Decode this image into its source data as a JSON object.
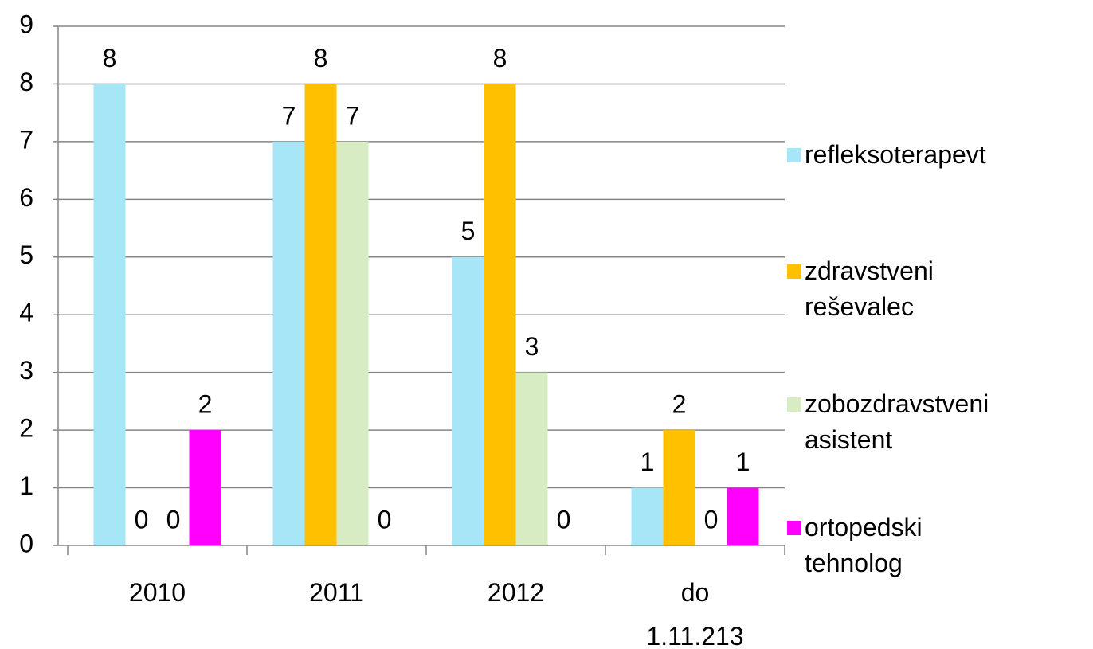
{
  "chart_data": {
    "type": "bar",
    "categories": [
      "2010",
      "2011",
      "2012",
      "do 1.11.213"
    ],
    "series": [
      {
        "name": "refleksoterapevt",
        "color": "#a6e6f7",
        "values": [
          8,
          7,
          5,
          1
        ]
      },
      {
        "name": "zdravstveni reševalec",
        "color": "#ffc000",
        "values": [
          0,
          8,
          8,
          2
        ]
      },
      {
        "name": "zobozdravstveni asistent",
        "color": "#d7ecc2",
        "values": [
          0,
          7,
          3,
          0
        ]
      },
      {
        "name": "ortopedski tehnolog",
        "color": "#ff00ff",
        "values": [
          2,
          0,
          0,
          1
        ]
      }
    ],
    "ylim": [
      0,
      9
    ],
    "yticks": [
      0,
      1,
      2,
      3,
      4,
      5,
      6,
      7,
      8,
      9
    ],
    "grid": true,
    "legend": "right"
  }
}
